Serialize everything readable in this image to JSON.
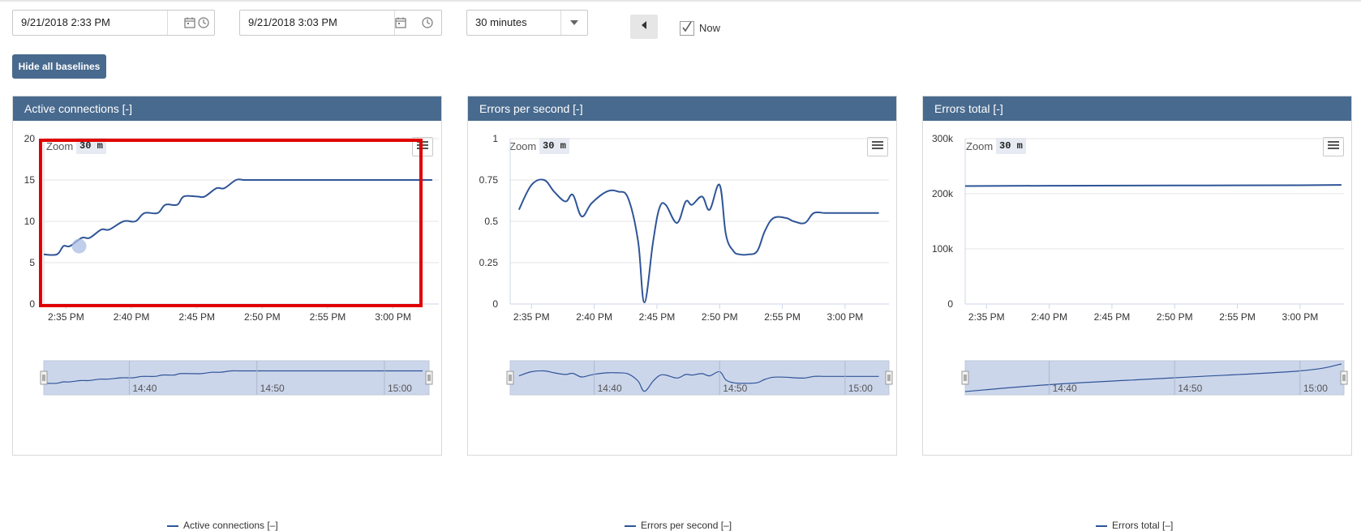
{
  "toolbar": {
    "start_datetime": "9/21/2018 2:33 PM",
    "end_datetime": "9/21/2018 3:03 PM",
    "range_select": "30 minutes",
    "now_label": "Now",
    "now_checked": true,
    "hide_baselines_label": "Hide all baselines",
    "icons": [
      "calendar-icon",
      "clock-icon",
      "chevron-down-icon",
      "triangle-left-icon",
      "check-icon",
      "hamburger-menu-icon"
    ]
  },
  "colors": {
    "header_bg": "#486a8e",
    "series": "#2f5597",
    "navigator_fill": "#ccd6eb",
    "highlight_box": "#e00000"
  },
  "panels": [
    {
      "title": "Active connections [-]",
      "zoom_label": "Zoom",
      "zoom_value": "30 m",
      "legend": "Active connections [–]",
      "highlighted": true
    },
    {
      "title": "Errors per second [-]",
      "zoom_label": "Zoom",
      "zoom_value": "30 m",
      "legend": "Errors per second [–]",
      "highlighted": false
    },
    {
      "title": "Errors total [-]",
      "zoom_label": "Zoom",
      "zoom_value": "30 m",
      "legend": "Errors total [–]",
      "highlighted": false
    }
  ],
  "chart_data": [
    {
      "type": "line",
      "xlabel": "",
      "ylabel": "",
      "x_ticks": [
        "2:35 PM",
        "2:40 PM",
        "2:45 PM",
        "2:50 PM",
        "2:55 PM",
        "3:00 PM"
      ],
      "y_ticks": [
        "0",
        "5",
        "10",
        "15",
        "20"
      ],
      "ylim": [
        0,
        20
      ],
      "xlim_minutes_after_2pm": [
        33.3,
        63.5
      ],
      "grid": true,
      "navigator_ticks": [
        "14:40",
        "14:50",
        "15:00"
      ],
      "series": [
        {
          "name": "Active connections [–]",
          "x_minutes_after_2pm": [
            33.3,
            34.3,
            34.8,
            35.3,
            36.2,
            36.8,
            37.7,
            38.3,
            39.4,
            40.3,
            41.0,
            42.0,
            42.6,
            43.5,
            44.0,
            45.0,
            45.6,
            46.5,
            47.1,
            48.0,
            48.6,
            49.5,
            50.1,
            51.0,
            51.6,
            53.0,
            63.0
          ],
          "values": [
            6,
            6,
            7,
            7,
            8,
            8,
            9,
            9,
            10,
            10,
            11,
            11,
            12,
            12,
            13,
            13,
            13,
            14,
            14,
            15,
            15,
            15,
            15,
            15,
            15,
            15,
            15
          ]
        }
      ]
    },
    {
      "type": "line",
      "xlabel": "",
      "ylabel": "",
      "x_ticks": [
        "2:35 PM",
        "2:40 PM",
        "2:45 PM",
        "2:50 PM",
        "2:55 PM",
        "3:00 PM"
      ],
      "y_ticks": [
        "0",
        "0.25",
        "0.5",
        "0.75",
        "1"
      ],
      "ylim": [
        0,
        1
      ],
      "xlim_minutes_after_2pm": [
        33.3,
        63.5
      ],
      "grid": true,
      "navigator_ticks": [
        "14:40",
        "14:50",
        "15:00"
      ],
      "series": [
        {
          "name": "Errors per second [–]",
          "x_minutes_after_2pm": [
            34.0,
            35.0,
            36.0,
            36.8,
            37.7,
            38.3,
            39.0,
            39.8,
            41.0,
            41.9,
            42.7,
            43.5,
            44.0,
            44.7,
            45.2,
            45.7,
            46.6,
            47.3,
            47.8,
            48.6,
            49.2,
            50.0,
            50.5,
            51.1,
            51.6,
            52.3,
            53.0,
            53.6,
            54.3,
            55.3,
            55.9,
            56.8,
            57.5,
            58.4,
            59.2,
            60.1,
            60.9,
            61.6,
            62.7
          ],
          "values": [
            0.57,
            0.72,
            0.75,
            0.68,
            0.62,
            0.66,
            0.53,
            0.61,
            0.68,
            0.68,
            0.64,
            0.38,
            0.01,
            0.38,
            0.58,
            0.6,
            0.49,
            0.62,
            0.6,
            0.65,
            0.57,
            0.72,
            0.42,
            0.32,
            0.3,
            0.3,
            0.32,
            0.44,
            0.52,
            0.52,
            0.5,
            0.49,
            0.55,
            0.55,
            0.55,
            0.55,
            0.55,
            0.55,
            0.55
          ]
        }
      ]
    },
    {
      "type": "line",
      "xlabel": "",
      "ylabel": "",
      "x_ticks": [
        "2:35 PM",
        "2:40 PM",
        "2:45 PM",
        "2:50 PM",
        "2:55 PM",
        "3:00 PM"
      ],
      "y_ticks": [
        "0",
        "100k",
        "200k",
        "300k"
      ],
      "ylim": [
        0,
        300000
      ],
      "xlim_minutes_after_2pm": [
        33.3,
        63.5
      ],
      "grid": true,
      "navigator_ticks": [
        "14:40",
        "14:50",
        "15:00"
      ],
      "series": [
        {
          "name": "Errors total [–]",
          "x_minutes_after_2pm": [
            33.3,
            40.0,
            50.0,
            60.0,
            63.3
          ],
          "values": [
            214000,
            214500,
            215000,
            215500,
            216000
          ]
        }
      ]
    }
  ]
}
